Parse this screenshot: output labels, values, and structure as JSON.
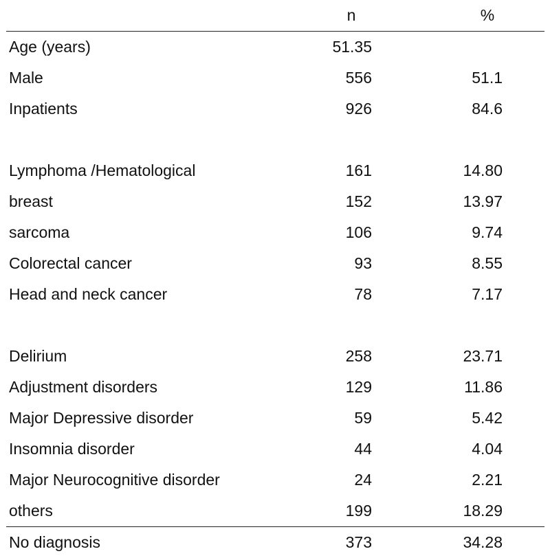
{
  "header": {
    "n": "n",
    "pct": "%"
  },
  "rows_a": [
    {
      "label": "Age (years)",
      "n": "51.35",
      "pct": ""
    },
    {
      "label": "Male",
      "n": "556",
      "pct": "51.1"
    },
    {
      "label": "Inpatients",
      "n": "926",
      "pct": "84.6"
    }
  ],
  "rows_b": [
    {
      "label": "Lymphoma /Hematological",
      "n": "161",
      "pct": "14.80"
    },
    {
      "label": "breast",
      "n": "152",
      "pct": "13.97"
    },
    {
      "label": "sarcoma",
      "n": "106",
      "pct": "9.74"
    },
    {
      "label": "Colorectal cancer",
      "n": "93",
      "pct": "8.55"
    },
    {
      "label": "Head and neck cancer",
      "n": "78",
      "pct": "7.17"
    }
  ],
  "rows_c": [
    {
      "label": "Delirium",
      "n": "258",
      "pct": "23.71"
    },
    {
      "label": "Adjustment disorders",
      "n": "129",
      "pct": "11.86"
    },
    {
      "label": "Major Depressive disorder",
      "n": "59",
      "pct": "5.42"
    },
    {
      "label": "Insomnia disorder",
      "n": "44",
      "pct": "4.04"
    },
    {
      "label": "Major Neurocognitive disorder",
      "n": "24",
      "pct": "2.21"
    },
    {
      "label": "others",
      "n": "199",
      "pct": "18.29"
    }
  ],
  "total": {
    "label": "No diagnosis",
    "n": "373",
    "pct": "34.28"
  }
}
